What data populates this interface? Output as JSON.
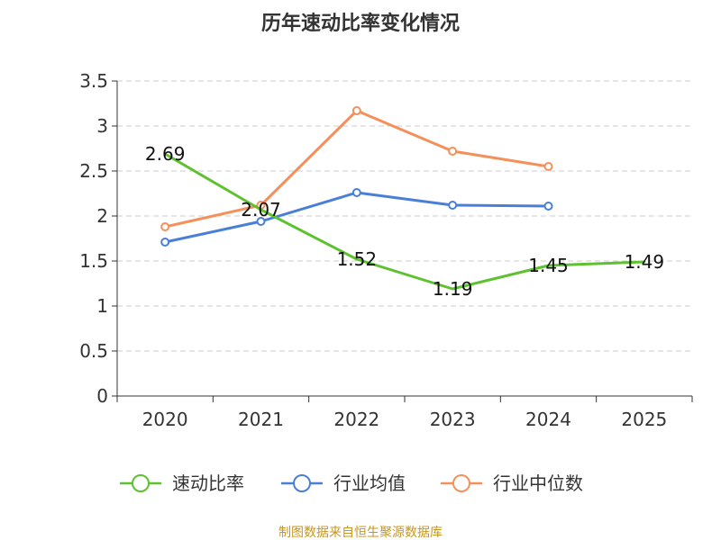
{
  "chart_data": {
    "type": "line",
    "title": "历年速动比率变化情况",
    "categories": [
      "2020",
      "2021",
      "2022",
      "2023",
      "2024",
      "2025"
    ],
    "ylim": [
      0,
      3.5
    ],
    "yticks": [
      "0",
      "0.5",
      "1",
      "1.5",
      "2",
      "2.5",
      "3",
      "3.5"
    ],
    "grid": true,
    "legend_position": "bottom",
    "series": [
      {
        "name": "速动比率",
        "color": "#5ec12f",
        "values": [
          2.69,
          2.07,
          1.52,
          1.19,
          1.45,
          1.49
        ],
        "labels": [
          "2.69",
          "2.07",
          "1.52",
          "1.19",
          "1.45",
          "1.49"
        ],
        "show_labels": true,
        "show_markers": false
      },
      {
        "name": "行业均值",
        "color": "#4a7fd8",
        "values": [
          1.71,
          1.94,
          2.26,
          2.12,
          2.11,
          null
        ],
        "show_labels": false,
        "show_markers": true
      },
      {
        "name": "行业中位数",
        "color": "#f4905a",
        "values": [
          1.88,
          2.12,
          3.17,
          2.72,
          2.55,
          null
        ],
        "show_labels": false,
        "show_markers": true
      }
    ],
    "source": "制图数据来自恒生聚源数据库"
  }
}
